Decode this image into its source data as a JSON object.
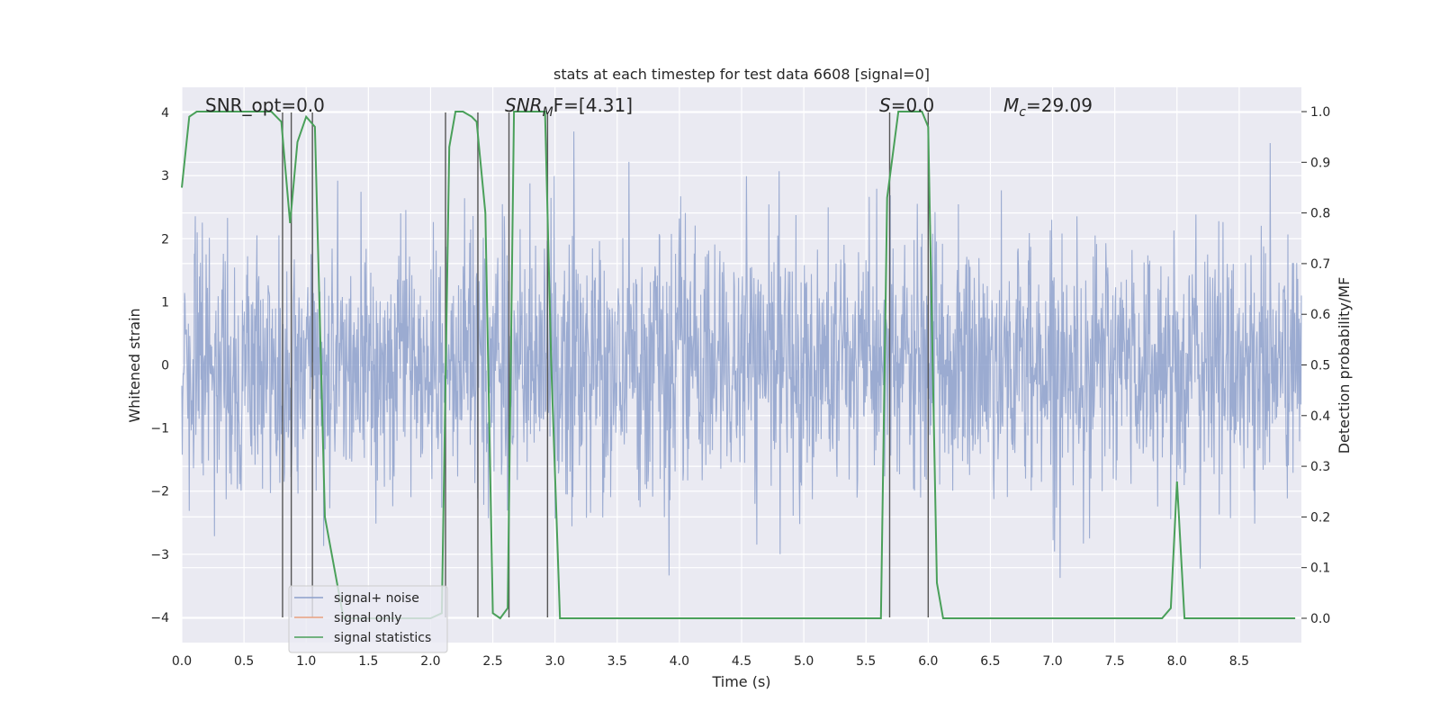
{
  "chart_data": {
    "type": "line",
    "title": "stats at each timestep for test data 6608 [signal=0]",
    "xlabel": "Time (s)",
    "ylabel": "Whitened strain",
    "y2label": "Detection probability/MF",
    "xlim": [
      0,
      9.0
    ],
    "ylim": [
      -4.4,
      4.4
    ],
    "y2lim": [
      -0.048,
      1.048
    ],
    "xticks": [
      "0.0",
      "0.5",
      "1.0",
      "1.5",
      "2.0",
      "2.5",
      "3.0",
      "3.5",
      "4.0",
      "4.5",
      "5.0",
      "5.5",
      "6.0",
      "6.5",
      "7.0",
      "7.5",
      "8.0",
      "8.5"
    ],
    "yticks": [
      "4",
      "3",
      "2",
      "1",
      "0",
      "−1",
      "−2",
      "−3",
      "−4"
    ],
    "y2ticks": [
      "1.0",
      "0.9",
      "0.8",
      "0.7",
      "0.6",
      "0.5",
      "0.4",
      "0.3",
      "0.2",
      "0.1",
      "0.0"
    ],
    "grid": true,
    "annotations": {
      "snr_opt": "SNR_opt=0.0",
      "snr_mf_base": "SNR",
      "snr_mf_sub": "M",
      "snr_mf_rest": "F=[4.31]",
      "s_italic": "S",
      "s_rest": "=0.0",
      "mc_base": "M",
      "mc_sub": "c",
      "mc_rest": "=29.09"
    },
    "vertical_lines_x": [
      0.81,
      0.88,
      1.05,
      2.12,
      2.38,
      2.63,
      2.94,
      5.69,
      6.0
    ],
    "series": [
      {
        "name": "signal+ noise",
        "color": "#8da0cb",
        "kind": "noise",
        "amplitude_std": 1.0
      },
      {
        "name": "signal only",
        "color": "#e8a07e",
        "kind": "flat",
        "values": []
      },
      {
        "name": "signal statistics",
        "color": "#4aa05a",
        "axis": "right",
        "x": [
          0.0,
          0.06,
          0.12,
          0.2,
          0.5,
          0.72,
          0.8,
          0.87,
          0.93,
          1.0,
          1.07,
          1.15,
          1.3,
          1.5,
          2.0,
          2.09,
          2.15,
          2.2,
          2.26,
          2.33,
          2.37,
          2.44,
          2.5,
          2.56,
          2.62,
          2.67,
          2.72,
          2.8,
          2.92,
          2.97,
          3.04,
          3.1,
          3.5,
          5.62,
          5.67,
          5.76,
          5.95,
          6.0,
          6.07,
          6.12,
          6.5,
          7.88,
          7.95,
          8.0,
          8.06,
          8.5,
          8.95
        ],
        "values": [
          0.85,
          0.99,
          1.0,
          1.0,
          1.0,
          1.0,
          0.98,
          0.78,
          0.94,
          0.99,
          0.97,
          0.2,
          0.0,
          0.0,
          0.0,
          0.01,
          0.93,
          1.0,
          1.0,
          0.99,
          0.98,
          0.8,
          0.01,
          0.0,
          0.02,
          1.0,
          1.0,
          1.0,
          1.0,
          0.5,
          0.0,
          0.0,
          0.0,
          0.0,
          0.83,
          1.0,
          1.0,
          0.97,
          0.07,
          0.0,
          0.0,
          0.0,
          0.02,
          0.27,
          0.0,
          0.0,
          0.0
        ]
      }
    ],
    "legend": {
      "placement": "lower-left",
      "entries": [
        "signal+ noise",
        "signal only",
        "signal statistics"
      ]
    }
  }
}
